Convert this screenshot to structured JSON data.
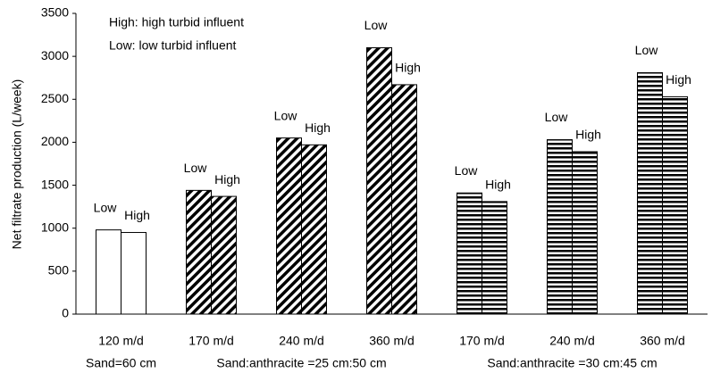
{
  "chart_data": {
    "type": "bar",
    "y_label": "Net filtrate production (L/week)",
    "annotations": [
      "High: high turbid influent",
      "Low: low turbid influent"
    ],
    "groups": [
      {
        "label": "Sand=60 cm",
        "pattern": "none",
        "categories": [
          "120 m/d"
        ]
      },
      {
        "label": "Sand:anthracite =25 cm:50 cm",
        "pattern": "diagonal",
        "categories": [
          "170 m/d",
          "240 m/d",
          "360 m/d"
        ]
      },
      {
        "label": "Sand:anthracite =30 cm:45 cm",
        "pattern": "horizontal",
        "categories": [
          "170 m/d",
          "240 m/d",
          "360 m/d"
        ]
      }
    ],
    "series": [
      {
        "name": "Low",
        "color": "#000000",
        "values": [
          980,
          1440,
          2050,
          3100,
          1410,
          2030,
          2810
        ]
      },
      {
        "name": "High",
        "color": "#000000",
        "values": [
          950,
          1370,
          1970,
          2670,
          1310,
          1890,
          2530
        ]
      }
    ],
    "ylim": [
      0,
      3500
    ],
    "yticks": [
      0,
      500,
      1000,
      1500,
      2000,
      2500,
      3000,
      3500
    ],
    "grid": false
  }
}
